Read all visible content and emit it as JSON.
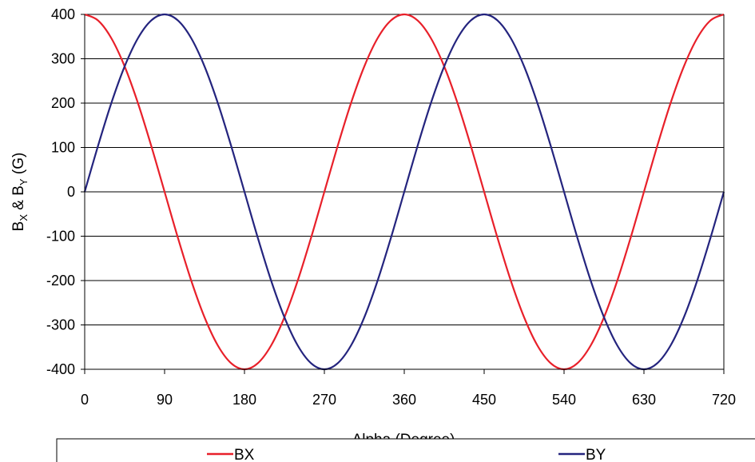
{
  "chart_data": {
    "type": "line",
    "xlabel": "Alpha (Degree)",
    "ylabel": {
      "parts": [
        "B",
        "X",
        " & B",
        "Y",
        " (G)"
      ]
    },
    "xlim": [
      0,
      720
    ],
    "ylim": [
      -400,
      400
    ],
    "xticks": [
      "0",
      "90",
      "180",
      "270",
      "360",
      "450",
      "540",
      "630",
      "720"
    ],
    "yticks": [
      "400",
      "300",
      "200",
      "100",
      "0",
      "-100",
      "-200",
      "-300",
      "-400"
    ],
    "grid": "horizontal",
    "legend_position": "bottom",
    "series": [
      {
        "name": "BX",
        "color": "#e8202a",
        "x": [
          0,
          15,
          30,
          45,
          60,
          75,
          90,
          105,
          120,
          135,
          150,
          165,
          180,
          195,
          210,
          225,
          240,
          255,
          270,
          285,
          300,
          315,
          330,
          345,
          360,
          375,
          390,
          405,
          420,
          435,
          450,
          465,
          480,
          495,
          510,
          525,
          540,
          555,
          570,
          585,
          600,
          615,
          630,
          645,
          660,
          675,
          690,
          705,
          720
        ],
        "y": [
          400,
          386.4,
          346.4,
          282.8,
          200,
          103.5,
          0,
          -103.5,
          -200,
          -282.8,
          -346.4,
          -386.4,
          -400,
          -386.4,
          -346.4,
          -282.8,
          -200,
          -103.5,
          0,
          103.5,
          200,
          282.8,
          346.4,
          386.4,
          400,
          386.4,
          346.4,
          282.8,
          200,
          103.5,
          0,
          -103.5,
          -200,
          -282.8,
          -346.4,
          -386.4,
          -400,
          -386.4,
          -346.4,
          -282.8,
          -200,
          -103.5,
          0,
          103.5,
          200,
          282.8,
          346.4,
          386.4,
          400
        ]
      },
      {
        "name": "BY",
        "color": "#24247e",
        "x": [
          0,
          15,
          30,
          45,
          60,
          75,
          90,
          105,
          120,
          135,
          150,
          165,
          180,
          195,
          210,
          225,
          240,
          255,
          270,
          285,
          300,
          315,
          330,
          345,
          360,
          375,
          390,
          405,
          420,
          435,
          450,
          465,
          480,
          495,
          510,
          525,
          540,
          555,
          570,
          585,
          600,
          615,
          630,
          645,
          660,
          675,
          690,
          705,
          720
        ],
        "y": [
          0,
          103.5,
          200,
          282.8,
          346.4,
          386.4,
          400,
          386.4,
          346.4,
          282.8,
          200,
          103.5,
          0,
          -103.5,
          -200,
          -282.8,
          -346.4,
          -386.4,
          -400,
          -386.4,
          -346.4,
          -282.8,
          -200,
          -103.5,
          0,
          103.5,
          200,
          282.8,
          346.4,
          386.4,
          400,
          386.4,
          346.4,
          282.8,
          200,
          103.5,
          0,
          -103.5,
          -200,
          -282.8,
          -346.4,
          -386.4,
          -400,
          -386.4,
          -346.4,
          -282.8,
          -200,
          -103.5,
          0
        ]
      }
    ]
  }
}
